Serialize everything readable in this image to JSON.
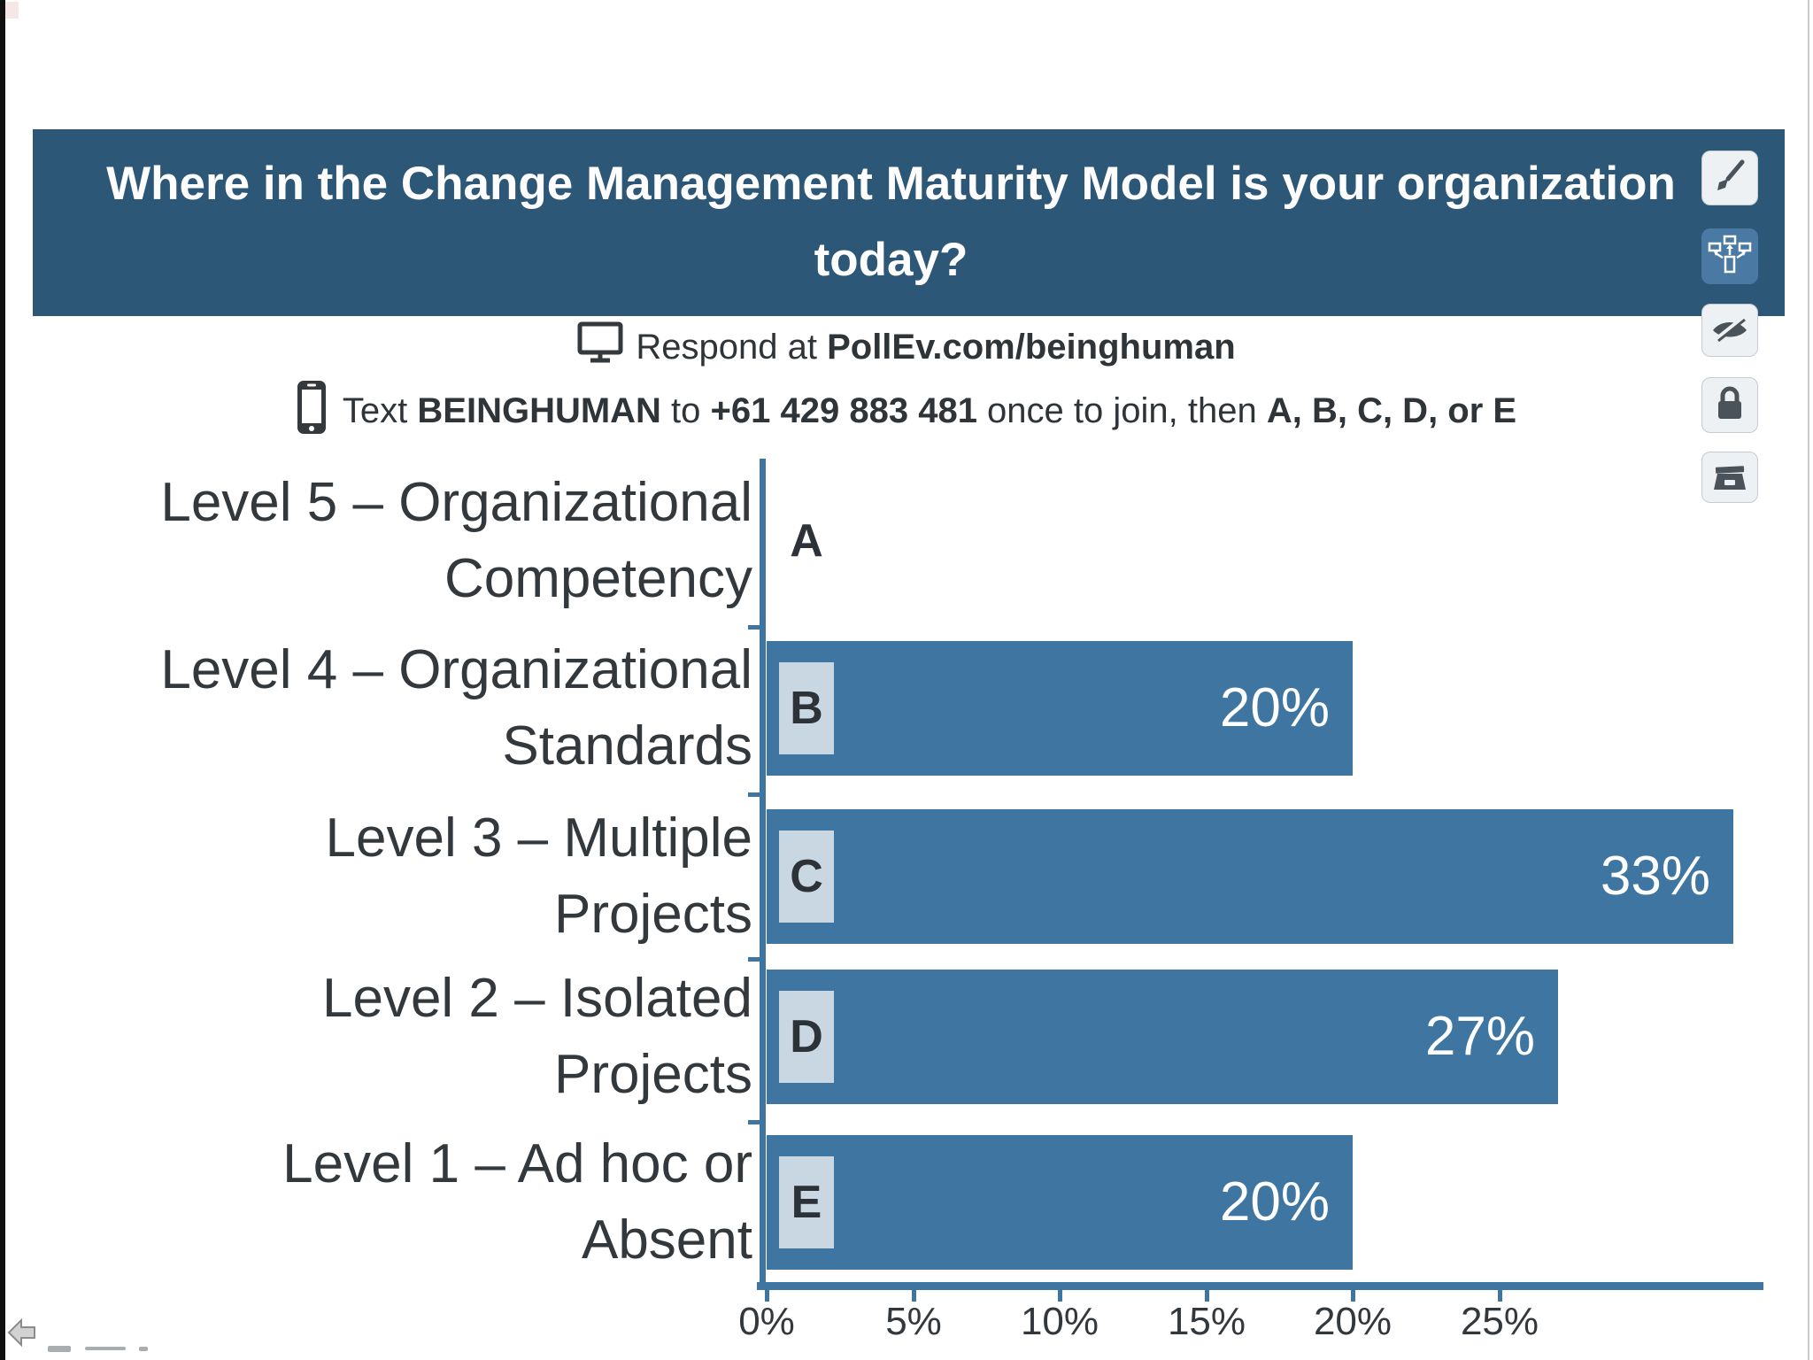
{
  "question_line1": "Where in the Change Management Maturity Model is your organization",
  "question_line2": "today?",
  "instructions": {
    "line1_prefix": "Respond at ",
    "line1_bold": "PollEv.com/beinghuman",
    "line2_prefix": "Text ",
    "line2_keyword": "BEINGHUMAN",
    "line2_mid": " to ",
    "line2_number": "+61 429 883 481",
    "line2_suffix": " once to join, then ",
    "line2_options": "A, B, C, D, or E"
  },
  "toolbar": {
    "buttons": [
      {
        "id": "edit",
        "icon": "paintbrush-icon"
      },
      {
        "id": "visual-settings",
        "icon": "flow-icon",
        "active": true
      },
      {
        "id": "hide-results",
        "icon": "eye-slash-icon"
      },
      {
        "id": "lock-poll",
        "icon": "lock-icon"
      },
      {
        "id": "archive-poll",
        "icon": "archive-icon"
      }
    ]
  },
  "chart_data": {
    "type": "bar",
    "orientation": "horizontal",
    "categories": [
      "Level 5 – Organizational Competency",
      "Level 4 – Organizational Standards",
      "Level 3 – Multiple Projects",
      "Level 2 – Isolated Projects",
      "Level 1 – Ad hoc or Absent"
    ],
    "category_lines": [
      [
        "Level 5 – Organizational",
        "Competency"
      ],
      [
        "Level 4 – Organizational",
        "Standards"
      ],
      [
        "Level 3 – Multiple",
        "Projects"
      ],
      [
        "Level 2 – Isolated",
        "Projects"
      ],
      [
        "Level 1 – Ad hoc or",
        "Absent"
      ]
    ],
    "option_letters": [
      "A",
      "B",
      "C",
      "D",
      "E"
    ],
    "values_percent": [
      0,
      20,
      33,
      27,
      20
    ],
    "value_labels": [
      "",
      "20%",
      "33%",
      "27%",
      "20%"
    ],
    "x_tick_labels": [
      "0%",
      "5%",
      "10%",
      "15%",
      "20%",
      "25%"
    ],
    "xlim": [
      0,
      34
    ],
    "grid": false,
    "legend": false,
    "bar_color": "#3e76a1",
    "axis_color": "#3e76a1",
    "chip_color": "#c9d7e3"
  },
  "colors": {
    "header_bg": "#2d5777",
    "header_text": "#fdfdfd",
    "bar_blue": "#3e76a1",
    "active_button_blue": "#4a7aa3",
    "chip_bg": "#c9d7e3",
    "text_dark": "#33383d"
  }
}
